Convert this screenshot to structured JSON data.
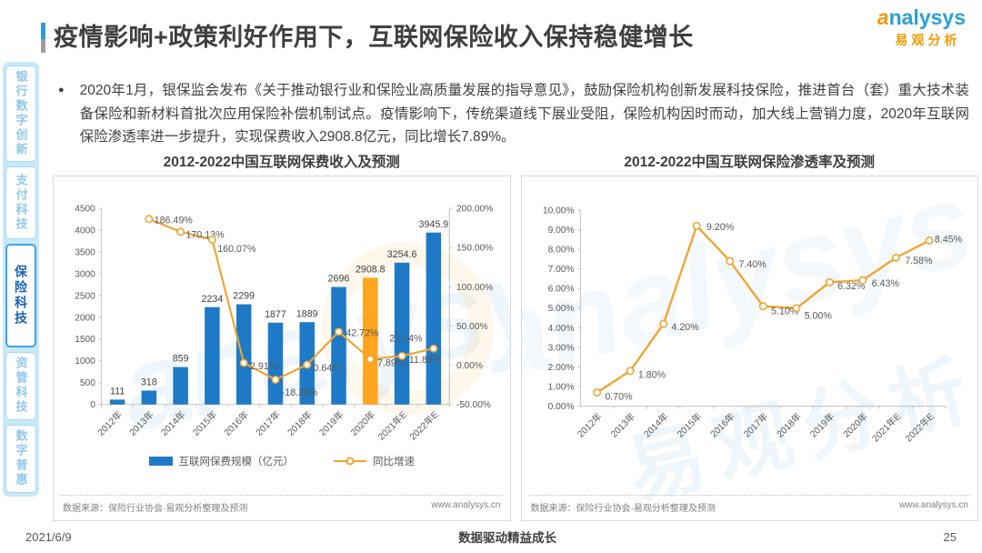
{
  "header": {
    "title": "疫情影响+政策利好作用下，互联网保险收入保持稳健增长",
    "logo_en": "analysys",
    "logo_cn": "易观分析"
  },
  "sidebar": {
    "items": [
      {
        "label": "银行数字创新",
        "active": false
      },
      {
        "label": "支付科技",
        "active": false
      },
      {
        "label": "保险科技",
        "active": true
      },
      {
        "label": "资管科技",
        "active": false
      },
      {
        "label": "数字普惠",
        "active": false
      }
    ]
  },
  "bullet": {
    "marker": "●",
    "text": "2020年1月，银保监会发布《关于推动银行业和保险业高质量发展的指导意见》，鼓励保险机构创新发展科技保险，推进首台（套）重大技术装备保险和新材料首批次应用保险补偿机制试点。疫情影响下，传统渠道线下展业受阻，保险机构因时而动，加大线上营销力度，2020年互联网保险渗透率进一步提升，实现保费收入2908.8亿元，同比增长7.89%。"
  },
  "watermark": {
    "en": "analysys",
    "cn": "易观分析"
  },
  "chart_data": [
    {
      "type": "bar",
      "title": "2012-2022中国互联网保费收入及预测",
      "categories": [
        "2012年",
        "2013年",
        "2014年",
        "2015年",
        "2016年",
        "2017年",
        "2018年",
        "2019年",
        "2020年",
        "2021年E",
        "2022年E"
      ],
      "series": [
        {
          "name": "互联网保费规模（亿元）",
          "type": "bar",
          "axis": "left",
          "values": [
            111,
            318,
            859,
            2234,
            2299,
            1877,
            1889,
            2696,
            2908.8,
            3254.6,
            3945.9
          ],
          "color": "#1e7ac6",
          "highlight_index": 8,
          "highlight_color": "#ffa51e"
        },
        {
          "name": "同比增速",
          "type": "line",
          "axis": "right",
          "values": [
            null,
            186.49,
            170.13,
            160.07,
            2.91,
            -18.36,
            0.64,
            42.72,
            7.89,
            11.89,
            21.24
          ],
          "color": "#f0a330"
        }
      ],
      "left_axis": {
        "min": 0,
        "max": 4500,
        "step": 500
      },
      "right_axis": {
        "min": -50,
        "max": 200,
        "step": 50,
        "suffix": "%"
      },
      "grid": false,
      "legend_position": "bottom",
      "source": "数据来源：保险行业协会·易观分析整理及预测",
      "site": "www.analysys.cn"
    },
    {
      "type": "line",
      "title": "2012-2022中国互联网保险渗透率及预测",
      "categories": [
        "2012年",
        "2013年",
        "2014年",
        "2015年",
        "2016年",
        "2017年",
        "2018年",
        "2019年",
        "2020年",
        "2021年E",
        "2022年E"
      ],
      "values": [
        0.7,
        1.8,
        4.2,
        9.2,
        7.4,
        5.1,
        5.0,
        6.32,
        6.43,
        7.58,
        8.45
      ],
      "color": "#f0a330",
      "yaxis": {
        "min": 0,
        "max": 10,
        "step": 1,
        "suffix": "%"
      },
      "grid": false,
      "source": "数据来源：保险行业协会·易观分析整理及预测",
      "site": "www.analysys.cn"
    }
  ],
  "footer": {
    "date": "2021/6/9",
    "slogan": "数据驱动精益成长",
    "page": "25"
  }
}
